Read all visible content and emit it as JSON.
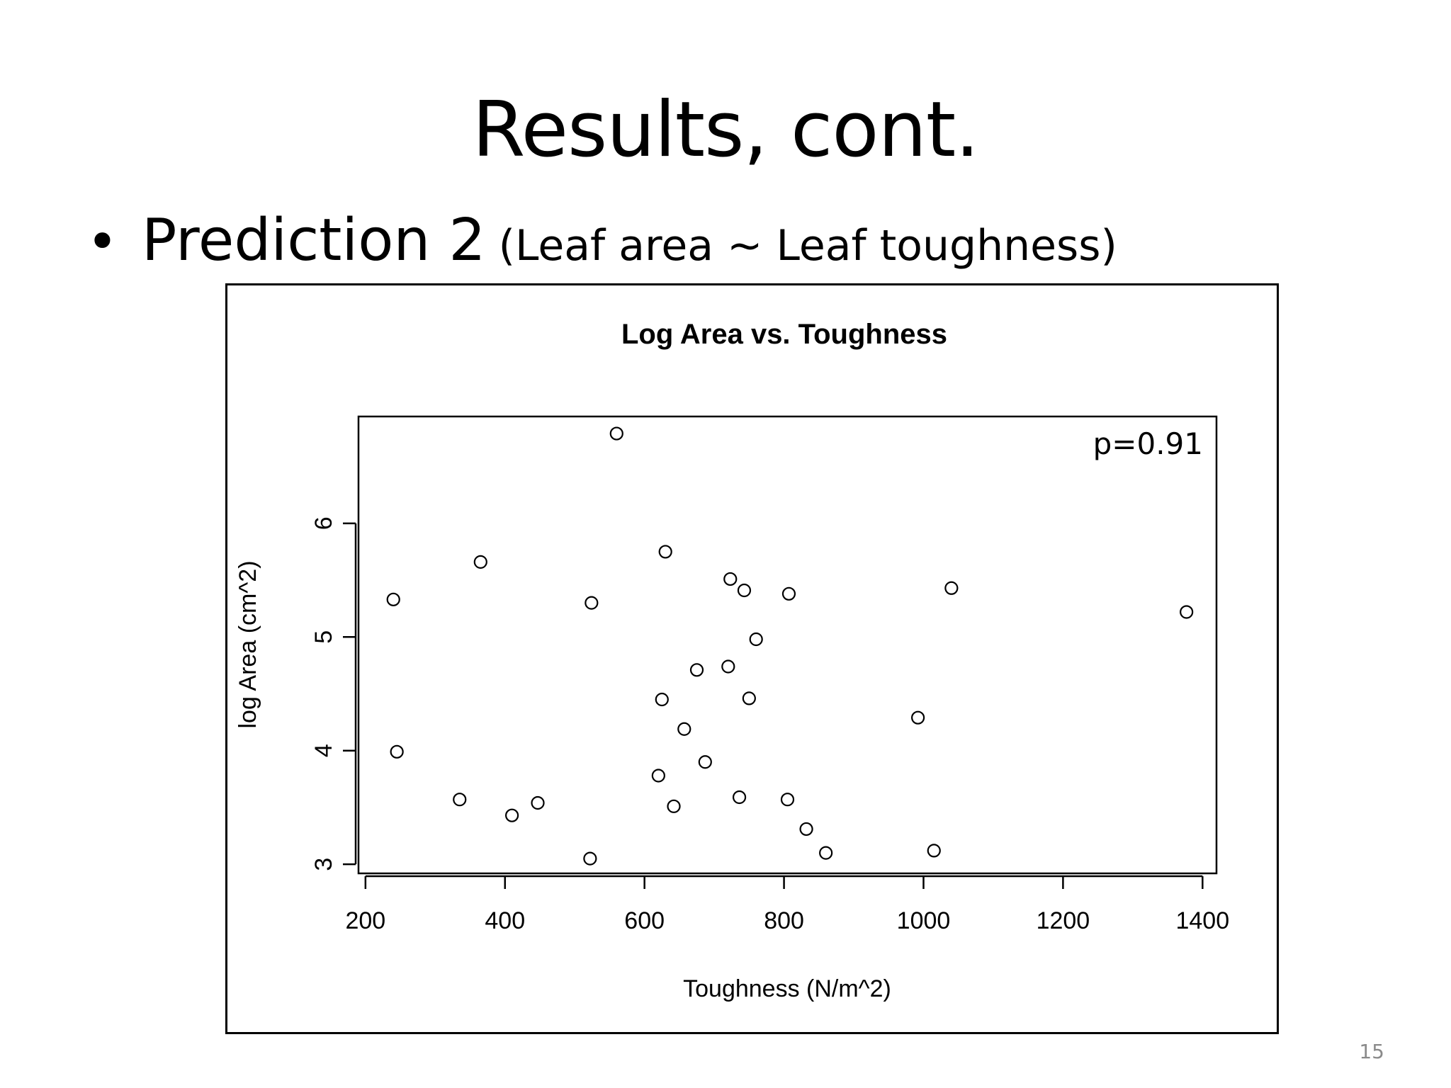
{
  "slide": {
    "title": "Results, cont.",
    "bullet": {
      "symbol": "•",
      "main": "Prediction 2",
      "sub": "(Leaf area ~ Leaf toughness)"
    },
    "page_number": "15"
  },
  "chart_data": {
    "type": "scatter",
    "title": "Log Area vs. Toughness",
    "xlabel": "Toughness (N/m^2)",
    "ylabel": "log Area (cm^2)",
    "annotation": "p=0.91",
    "xlim": [
      190,
      1420
    ],
    "ylim": [
      2.92,
      6.94
    ],
    "xticks": [
      200,
      400,
      600,
      800,
      1000,
      1200,
      1400
    ],
    "xtick_labels": [
      "200",
      "400",
      "600",
      "800",
      "1000",
      "1200",
      "1400"
    ],
    "yticks": [
      3,
      4,
      5,
      6
    ],
    "ytick_labels": [
      "3",
      "4",
      "5",
      "6"
    ],
    "grid": false,
    "legend": "none",
    "marker": "open-circle",
    "points": [
      {
        "x": 240,
        "y": 5.33
      },
      {
        "x": 245,
        "y": 3.99
      },
      {
        "x": 335,
        "y": 3.57
      },
      {
        "x": 365,
        "y": 5.66
      },
      {
        "x": 410,
        "y": 3.43
      },
      {
        "x": 447,
        "y": 3.54
      },
      {
        "x": 522,
        "y": 3.05
      },
      {
        "x": 524,
        "y": 5.3
      },
      {
        "x": 560,
        "y": 6.79
      },
      {
        "x": 620,
        "y": 3.78
      },
      {
        "x": 625,
        "y": 4.45
      },
      {
        "x": 630,
        "y": 5.75
      },
      {
        "x": 642,
        "y": 3.51
      },
      {
        "x": 657,
        "y": 4.19
      },
      {
        "x": 675,
        "y": 4.71
      },
      {
        "x": 687,
        "y": 3.9
      },
      {
        "x": 720,
        "y": 4.74
      },
      {
        "x": 723,
        "y": 5.51
      },
      {
        "x": 736,
        "y": 3.59
      },
      {
        "x": 743,
        "y": 5.41
      },
      {
        "x": 750,
        "y": 4.46
      },
      {
        "x": 760,
        "y": 4.98
      },
      {
        "x": 805,
        "y": 3.57
      },
      {
        "x": 807,
        "y": 5.38
      },
      {
        "x": 832,
        "y": 3.31
      },
      {
        "x": 860,
        "y": 3.1
      },
      {
        "x": 992,
        "y": 4.29
      },
      {
        "x": 1015,
        "y": 3.12
      },
      {
        "x": 1040,
        "y": 5.43
      },
      {
        "x": 1377,
        "y": 5.22
      }
    ]
  }
}
